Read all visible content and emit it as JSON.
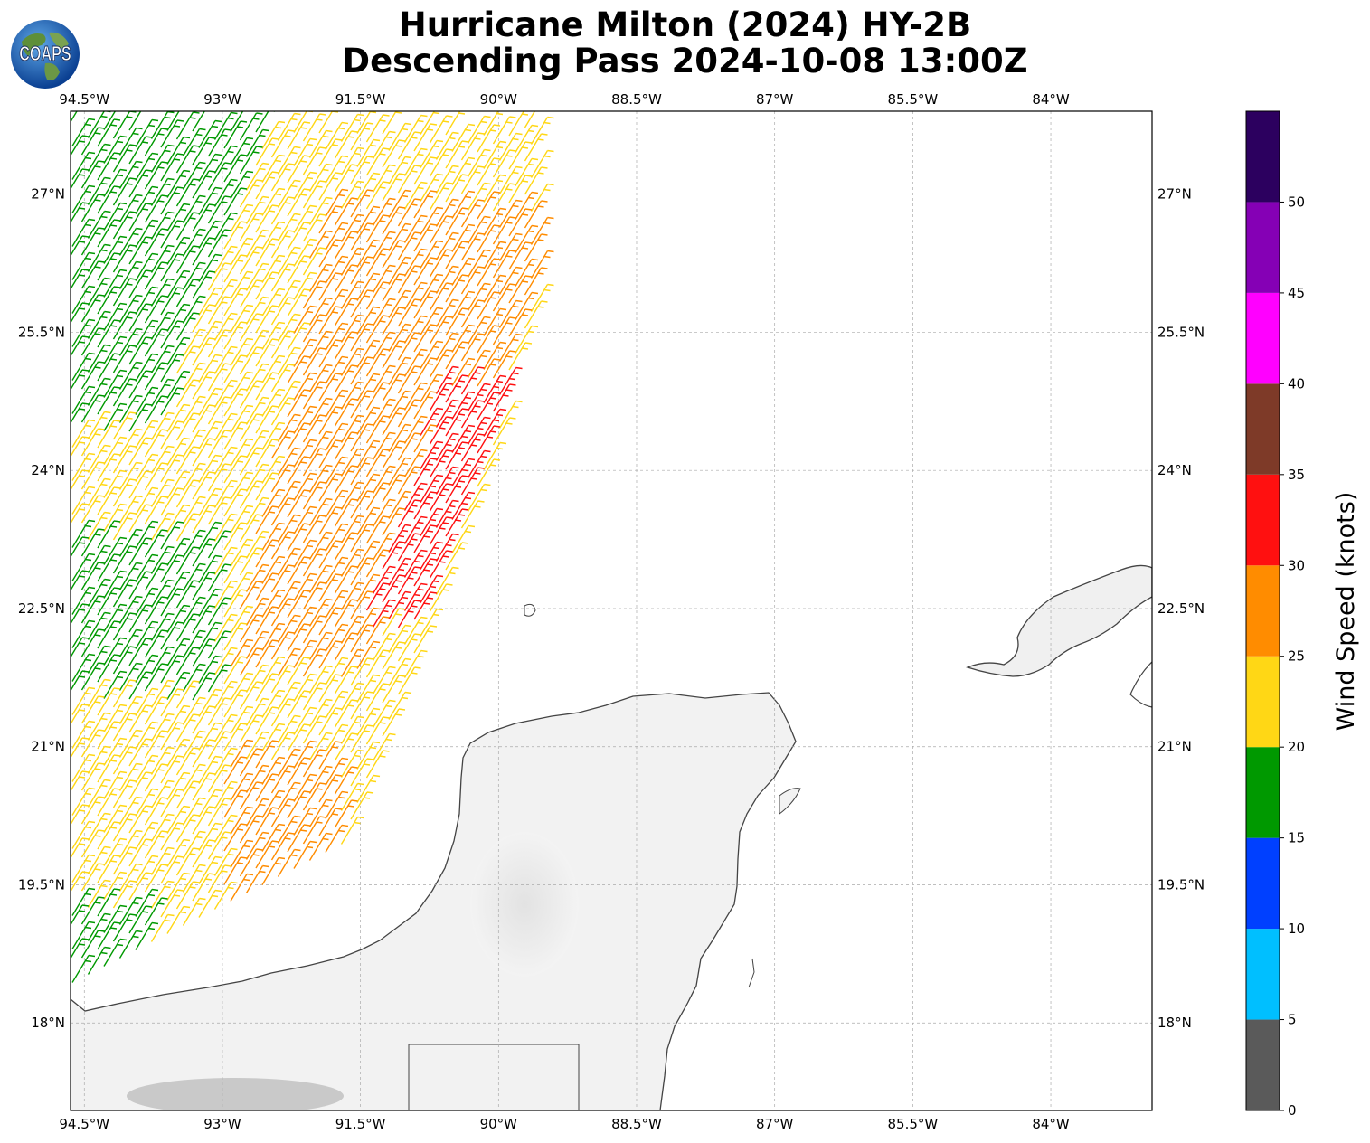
{
  "title": {
    "line1": "Hurricane Milton (2024) HY-2B",
    "line2": "Descending Pass 2024-10-08 13:00Z"
  },
  "logo": {
    "text": "COAPS",
    "icon": "globe-logo-icon"
  },
  "map": {
    "lon_range": [
      -94.65,
      -82.9
    ],
    "lat_range": [
      17.05,
      27.9
    ],
    "lon_ticks": [
      {
        "value": -94.5,
        "label": "94.5°W"
      },
      {
        "value": -93.0,
        "label": "93°W"
      },
      {
        "value": -91.5,
        "label": "91.5°W"
      },
      {
        "value": -90.0,
        "label": "90°W"
      },
      {
        "value": -88.5,
        "label": "88.5°W"
      },
      {
        "value": -87.0,
        "label": "87°W"
      },
      {
        "value": -85.5,
        "label": "85.5°W"
      },
      {
        "value": -84.0,
        "label": "84°W"
      }
    ],
    "lat_ticks": [
      {
        "value": 27.0,
        "label": "27°N"
      },
      {
        "value": 25.5,
        "label": "25.5°N"
      },
      {
        "value": 24.0,
        "label": "24°N"
      },
      {
        "value": 22.5,
        "label": "22.5°N"
      },
      {
        "value": 21.0,
        "label": "21°N"
      },
      {
        "value": 19.5,
        "label": "19.5°N"
      },
      {
        "value": 18.0,
        "label": "18°N"
      }
    ],
    "grid": true,
    "coastline_color": "#444444",
    "land_color": "#f1f1f1"
  },
  "colorbar": {
    "label": "Wind Speed (knots)",
    "bins": [
      {
        "from": 0,
        "to": 5,
        "color": "#5a5a5a"
      },
      {
        "from": 5,
        "to": 10,
        "color": "#00bfff"
      },
      {
        "from": 10,
        "to": 15,
        "color": "#0040ff"
      },
      {
        "from": 15,
        "to": 20,
        "color": "#009900"
      },
      {
        "from": 20,
        "to": 25,
        "color": "#ffd715"
      },
      {
        "from": 25,
        "to": 30,
        "color": "#ff8c00"
      },
      {
        "from": 30,
        "to": 35,
        "color": "#ff1010"
      },
      {
        "from": 35,
        "to": 40,
        "color": "#7e3a28"
      },
      {
        "from": 40,
        "to": 45,
        "color": "#ff00ff"
      },
      {
        "from": 45,
        "to": 50,
        "color": "#8500b5"
      },
      {
        "from": 50,
        "to": 55,
        "color": "#2c005f"
      }
    ],
    "tick_labels": [
      "0",
      "5",
      "10",
      "15",
      "20",
      "25",
      "30",
      "35",
      "40",
      "45",
      "50"
    ]
  },
  "wind_swath": {
    "description_type": "barbs",
    "dominant_direction": "NE",
    "zones": [
      {
        "name": "northwest",
        "speed_knots": 17,
        "color": "#009900"
      },
      {
        "name": "middle",
        "speed_knots": 22,
        "color": "#ffd715"
      },
      {
        "name": "east-central",
        "speed_knots": 27,
        "color": "#ff8c00"
      },
      {
        "name": "core",
        "speed_knots": 32,
        "color": "#ff1010"
      }
    ]
  }
}
